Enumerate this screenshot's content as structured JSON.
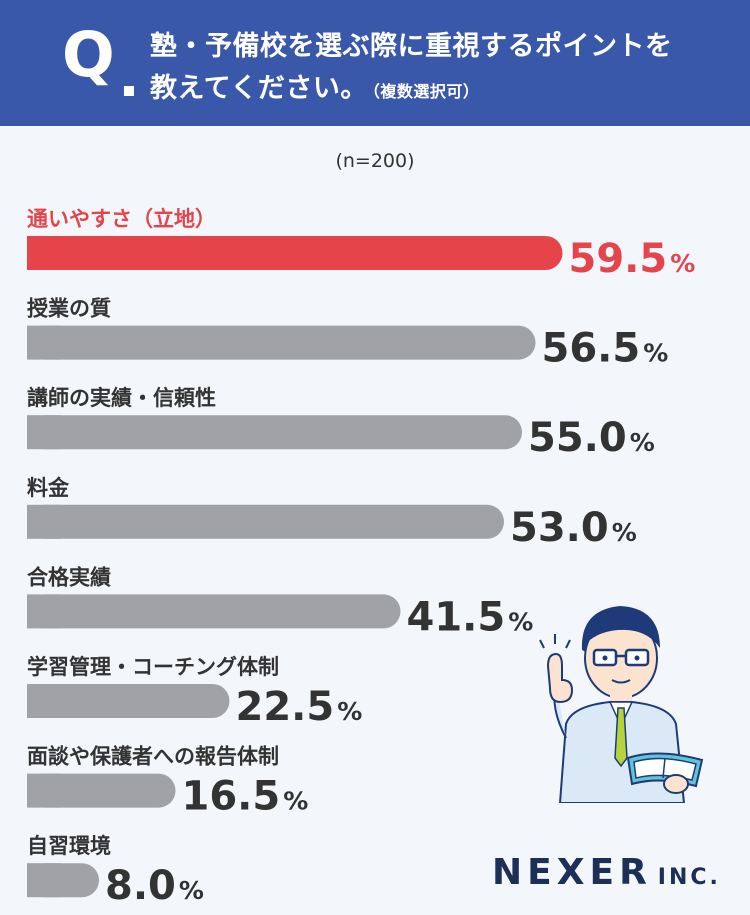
{
  "header": {
    "q_mark": "Q",
    "line1": "塾・予備校を選ぶ際に重視するポイントを",
    "line2": "教えてください。",
    "note": "（複数選択可）"
  },
  "sample_size": "(n=200)",
  "brand": {
    "name": "NEXER",
    "suffix": "INC."
  },
  "colors": {
    "highlight": "#e5454a",
    "bar": "#a1a2a8",
    "header": "#3a58aa",
    "text": "#333333"
  },
  "chart_data": {
    "type": "bar",
    "orientation": "horizontal",
    "unit": "%",
    "categories": [
      "通いやすさ（立地）",
      "授業の質",
      "講師の実績・信頼性",
      "料金",
      "合格実績",
      "学習管理・コーチング体制",
      "面談や保護者への報告体制",
      "自習環境"
    ],
    "values": [
      59.5,
      56.5,
      55.0,
      53.0,
      41.5,
      22.5,
      16.5,
      8.0
    ],
    "value_labels": [
      "59.5",
      "56.5",
      "55.0",
      "53.0",
      "41.5",
      "22.5",
      "16.5",
      "8.0"
    ],
    "highlight_index": 0,
    "xlim": [
      0,
      100
    ]
  }
}
